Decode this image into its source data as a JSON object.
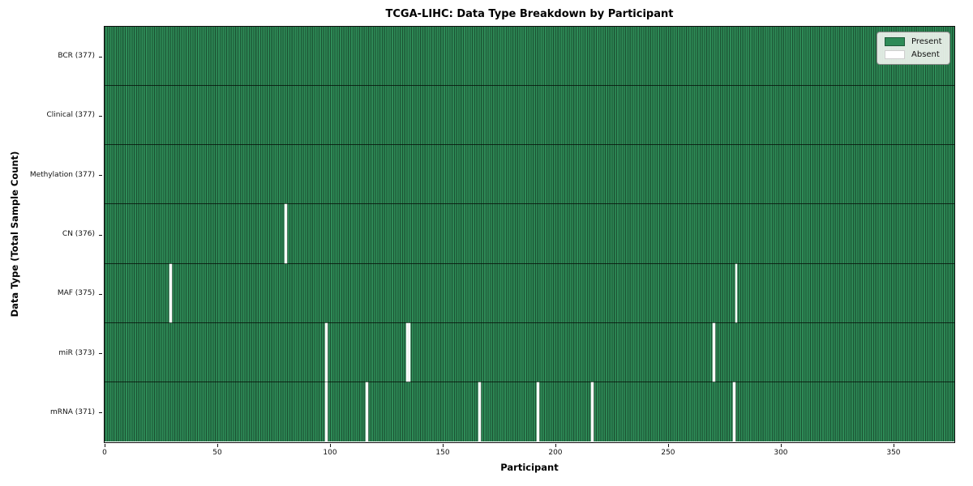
{
  "figure": {
    "title": "TCGA-LIHC: Data Type Breakdown by Participant",
    "xlabel": "Participant",
    "ylabel": "Data Type (Total Sample Count)"
  },
  "legend": {
    "items": [
      {
        "name": "present",
        "label": "Present",
        "color": "#2e8b57"
      },
      {
        "name": "absent",
        "label": "Absent",
        "color": "#ffffff"
      }
    ]
  },
  "chart_data": {
    "type": "heatmap",
    "title": "TCGA-LIHC: Data Type Breakdown by Participant",
    "xlabel": "Participant",
    "ylabel": "Data Type (Total Sample Count)",
    "n_participants": 377,
    "xlim": [
      0,
      377
    ],
    "x_ticks": [
      0,
      50,
      100,
      150,
      200,
      250,
      300,
      350
    ],
    "grid": false,
    "legend_position": "upper right",
    "cell_values": {
      "present": 1,
      "absent": 0
    },
    "rows": [
      {
        "data_type": "BCR",
        "label": "BCR (377)",
        "total": 377,
        "absent_participants": []
      },
      {
        "data_type": "Clinical",
        "label": "Clinical (377)",
        "total": 377,
        "absent_participants": []
      },
      {
        "data_type": "Methylation",
        "label": "Methylation (377)",
        "total": 377,
        "absent_participants": []
      },
      {
        "data_type": "CN",
        "label": "CN (376)",
        "total": 376,
        "absent_participants": [
          80
        ]
      },
      {
        "data_type": "MAF",
        "label": "MAF (375)",
        "total": 375,
        "absent_participants": [
          29,
          280
        ]
      },
      {
        "data_type": "miR",
        "label": "miR (373)",
        "total": 373,
        "absent_participants": [
          98,
          134,
          135,
          270
        ]
      },
      {
        "data_type": "mRNA",
        "label": "mRNA (371)",
        "total": 371,
        "absent_participants": [
          98,
          116,
          166,
          192,
          216,
          279
        ]
      }
    ],
    "colors": {
      "present": "#2e8b57",
      "absent": "#fafafa",
      "cell_edge": "#1b5233",
      "row_separator": "#0f1f15",
      "plot_border": "#0d0d0d"
    }
  }
}
